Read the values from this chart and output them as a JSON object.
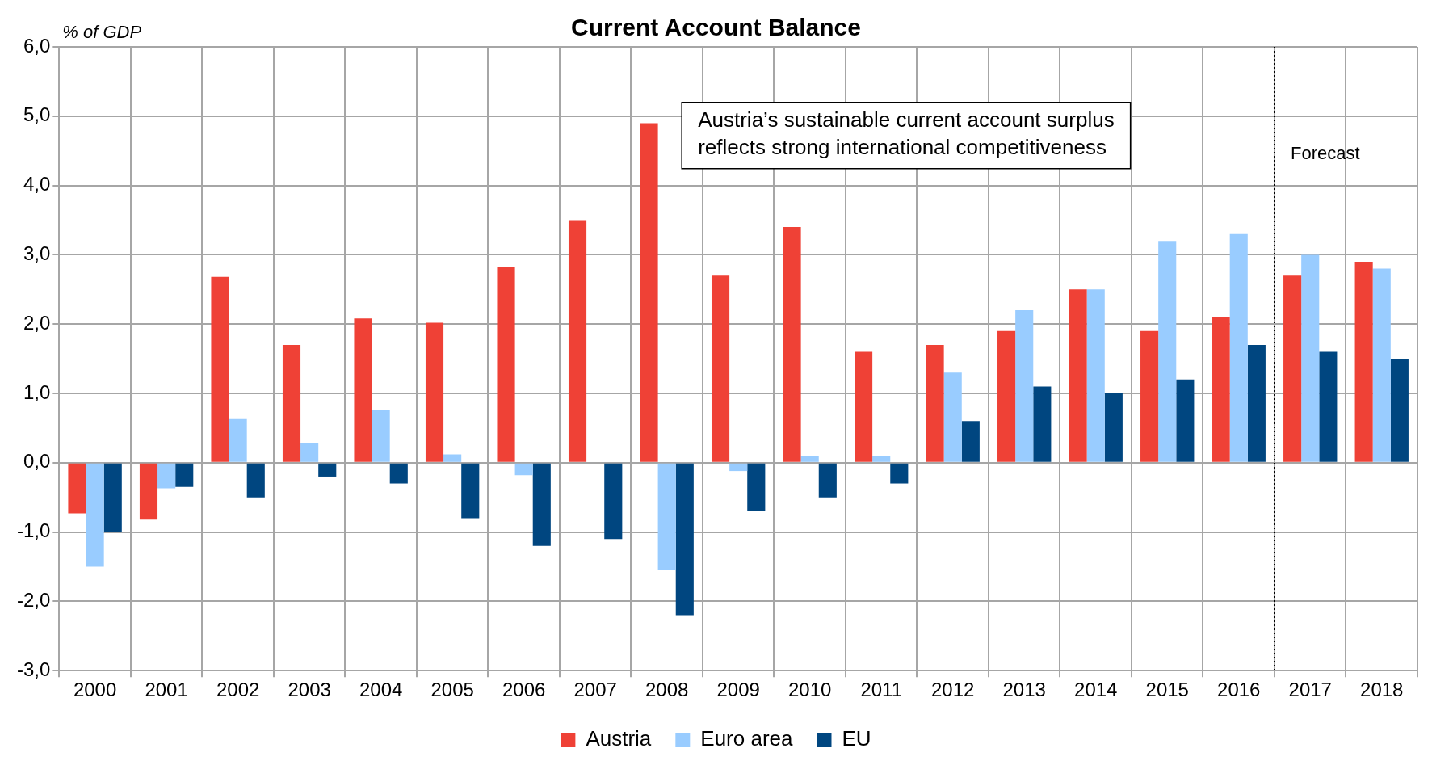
{
  "chart_data": {
    "type": "bar",
    "title": "Current Account Balance",
    "ylabel": "% of GDP",
    "categories": [
      "2000",
      "2001",
      "2002",
      "2003",
      "2004",
      "2005",
      "2006",
      "2007",
      "2008",
      "2009",
      "2010",
      "2011",
      "2012",
      "2013",
      "2014",
      "2015",
      "2016",
      "2017",
      "2018"
    ],
    "series": [
      {
        "name": "Austria",
        "color": "#ef4136",
        "values": [
          -0.73,
          -0.82,
          2.68,
          1.7,
          2.08,
          2.02,
          2.82,
          3.5,
          4.9,
          2.7,
          3.4,
          1.6,
          1.7,
          1.9,
          2.5,
          1.9,
          2.1,
          2.7,
          2.9
        ]
      },
      {
        "name": "Euro area",
        "color": "#99ccff",
        "values": [
          -1.5,
          -0.37,
          0.63,
          0.28,
          0.76,
          0.12,
          -0.18,
          0,
          -1.55,
          -0.12,
          0.1,
          0.1,
          1.3,
          2.2,
          2.5,
          3.2,
          3.3,
          3.0,
          2.8
        ]
      },
      {
        "name": "EU",
        "color": "#004680",
        "values": [
          -1.0,
          -0.35,
          -0.5,
          -0.2,
          -0.3,
          -0.8,
          -1.2,
          -1.1,
          -2.2,
          -0.7,
          -0.5,
          -0.3,
          0.6,
          1.1,
          1.0,
          1.2,
          1.7,
          1.6,
          1.5
        ]
      }
    ],
    "ylim": [
      -3,
      6
    ],
    "yticks": [
      {
        "value": -3,
        "label": "-3,0"
      },
      {
        "value": -2,
        "label": "-2,0"
      },
      {
        "value": -1,
        "label": "-1,0"
      },
      {
        "value": 0,
        "label": "0,0"
      },
      {
        "value": 1,
        "label": "1,0"
      },
      {
        "value": 2,
        "label": "2,0"
      },
      {
        "value": 3,
        "label": "3,0"
      },
      {
        "value": 4,
        "label": "4,0"
      },
      {
        "value": 5,
        "label": "5,0"
      },
      {
        "value": 6,
        "label": "6,0"
      }
    ],
    "grid": true,
    "legend": "bottom",
    "ref_lines": [
      {
        "axis": "x",
        "value": "2017",
        "label": "Forecast",
        "line_style": "dotted",
        "color": "#000000"
      }
    ],
    "annotations": [
      "Austria’s sustainable current account surplus reflects strong international competitiveness"
    ]
  }
}
